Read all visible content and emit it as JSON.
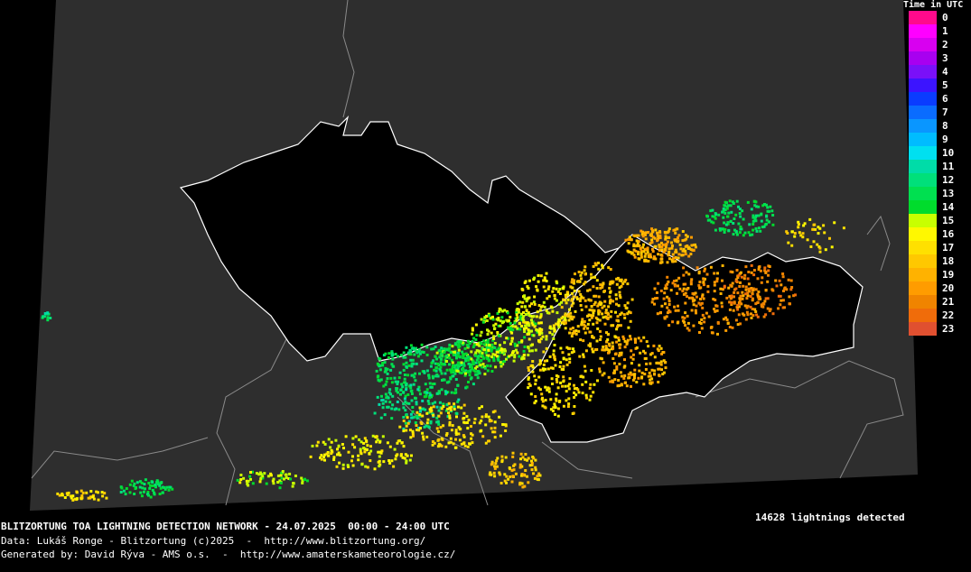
{
  "legend": {
    "title": "Time in UTC",
    "items": [
      {
        "label": "0",
        "color": "#ff0a8c"
      },
      {
        "label": "1",
        "color": "#ff00ff"
      },
      {
        "label": "2",
        "color": "#d800f0"
      },
      {
        "label": "3",
        "color": "#a800f0"
      },
      {
        "label": "4",
        "color": "#7a10f8"
      },
      {
        "label": "5",
        "color": "#3c14ff"
      },
      {
        "label": "6",
        "color": "#0a3cff"
      },
      {
        "label": "7",
        "color": "#0a6cff"
      },
      {
        "label": "8",
        "color": "#0a96ff"
      },
      {
        "label": "9",
        "color": "#00bcff"
      },
      {
        "label": "10",
        "color": "#00e0f0"
      },
      {
        "label": "11",
        "color": "#00dca8"
      },
      {
        "label": "12",
        "color": "#00e07a"
      },
      {
        "label": "13",
        "color": "#00e050"
      },
      {
        "label": "14",
        "color": "#00dc2c"
      },
      {
        "label": "15",
        "color": "#c8ff00"
      },
      {
        "label": "16",
        "color": "#fff800"
      },
      {
        "label": "17",
        "color": "#ffe000"
      },
      {
        "label": "18",
        "color": "#ffc800"
      },
      {
        "label": "19",
        "color": "#ffb200"
      },
      {
        "label": "20",
        "color": "#ff9c00"
      },
      {
        "label": "21",
        "color": "#f08400"
      },
      {
        "label": "22",
        "color": "#f06c0a"
      },
      {
        "label": "23",
        "color": "#e05030"
      }
    ]
  },
  "footer": {
    "title": "BLITZORTUNG TOA LIGHTNING DETECTION NETWORK - 24.07.2025  00:00 - 24:00 UTC",
    "data_credit": "Data: Lukáš Ronge - Blitzortung (c)2025  -  http://www.blitzortung.org/",
    "generated_by": "Generated by: David Rýva - AMS o.s.  -  http://www.amaterskameteorologie.cz/"
  },
  "count_text": "14628 lightnings detected",
  "colors": {
    "background": "#000000",
    "land": "#2e2e2e",
    "focus_countries": "#000000",
    "border": "#ffffff",
    "neighbour_border": "#8a8a8a"
  }
}
